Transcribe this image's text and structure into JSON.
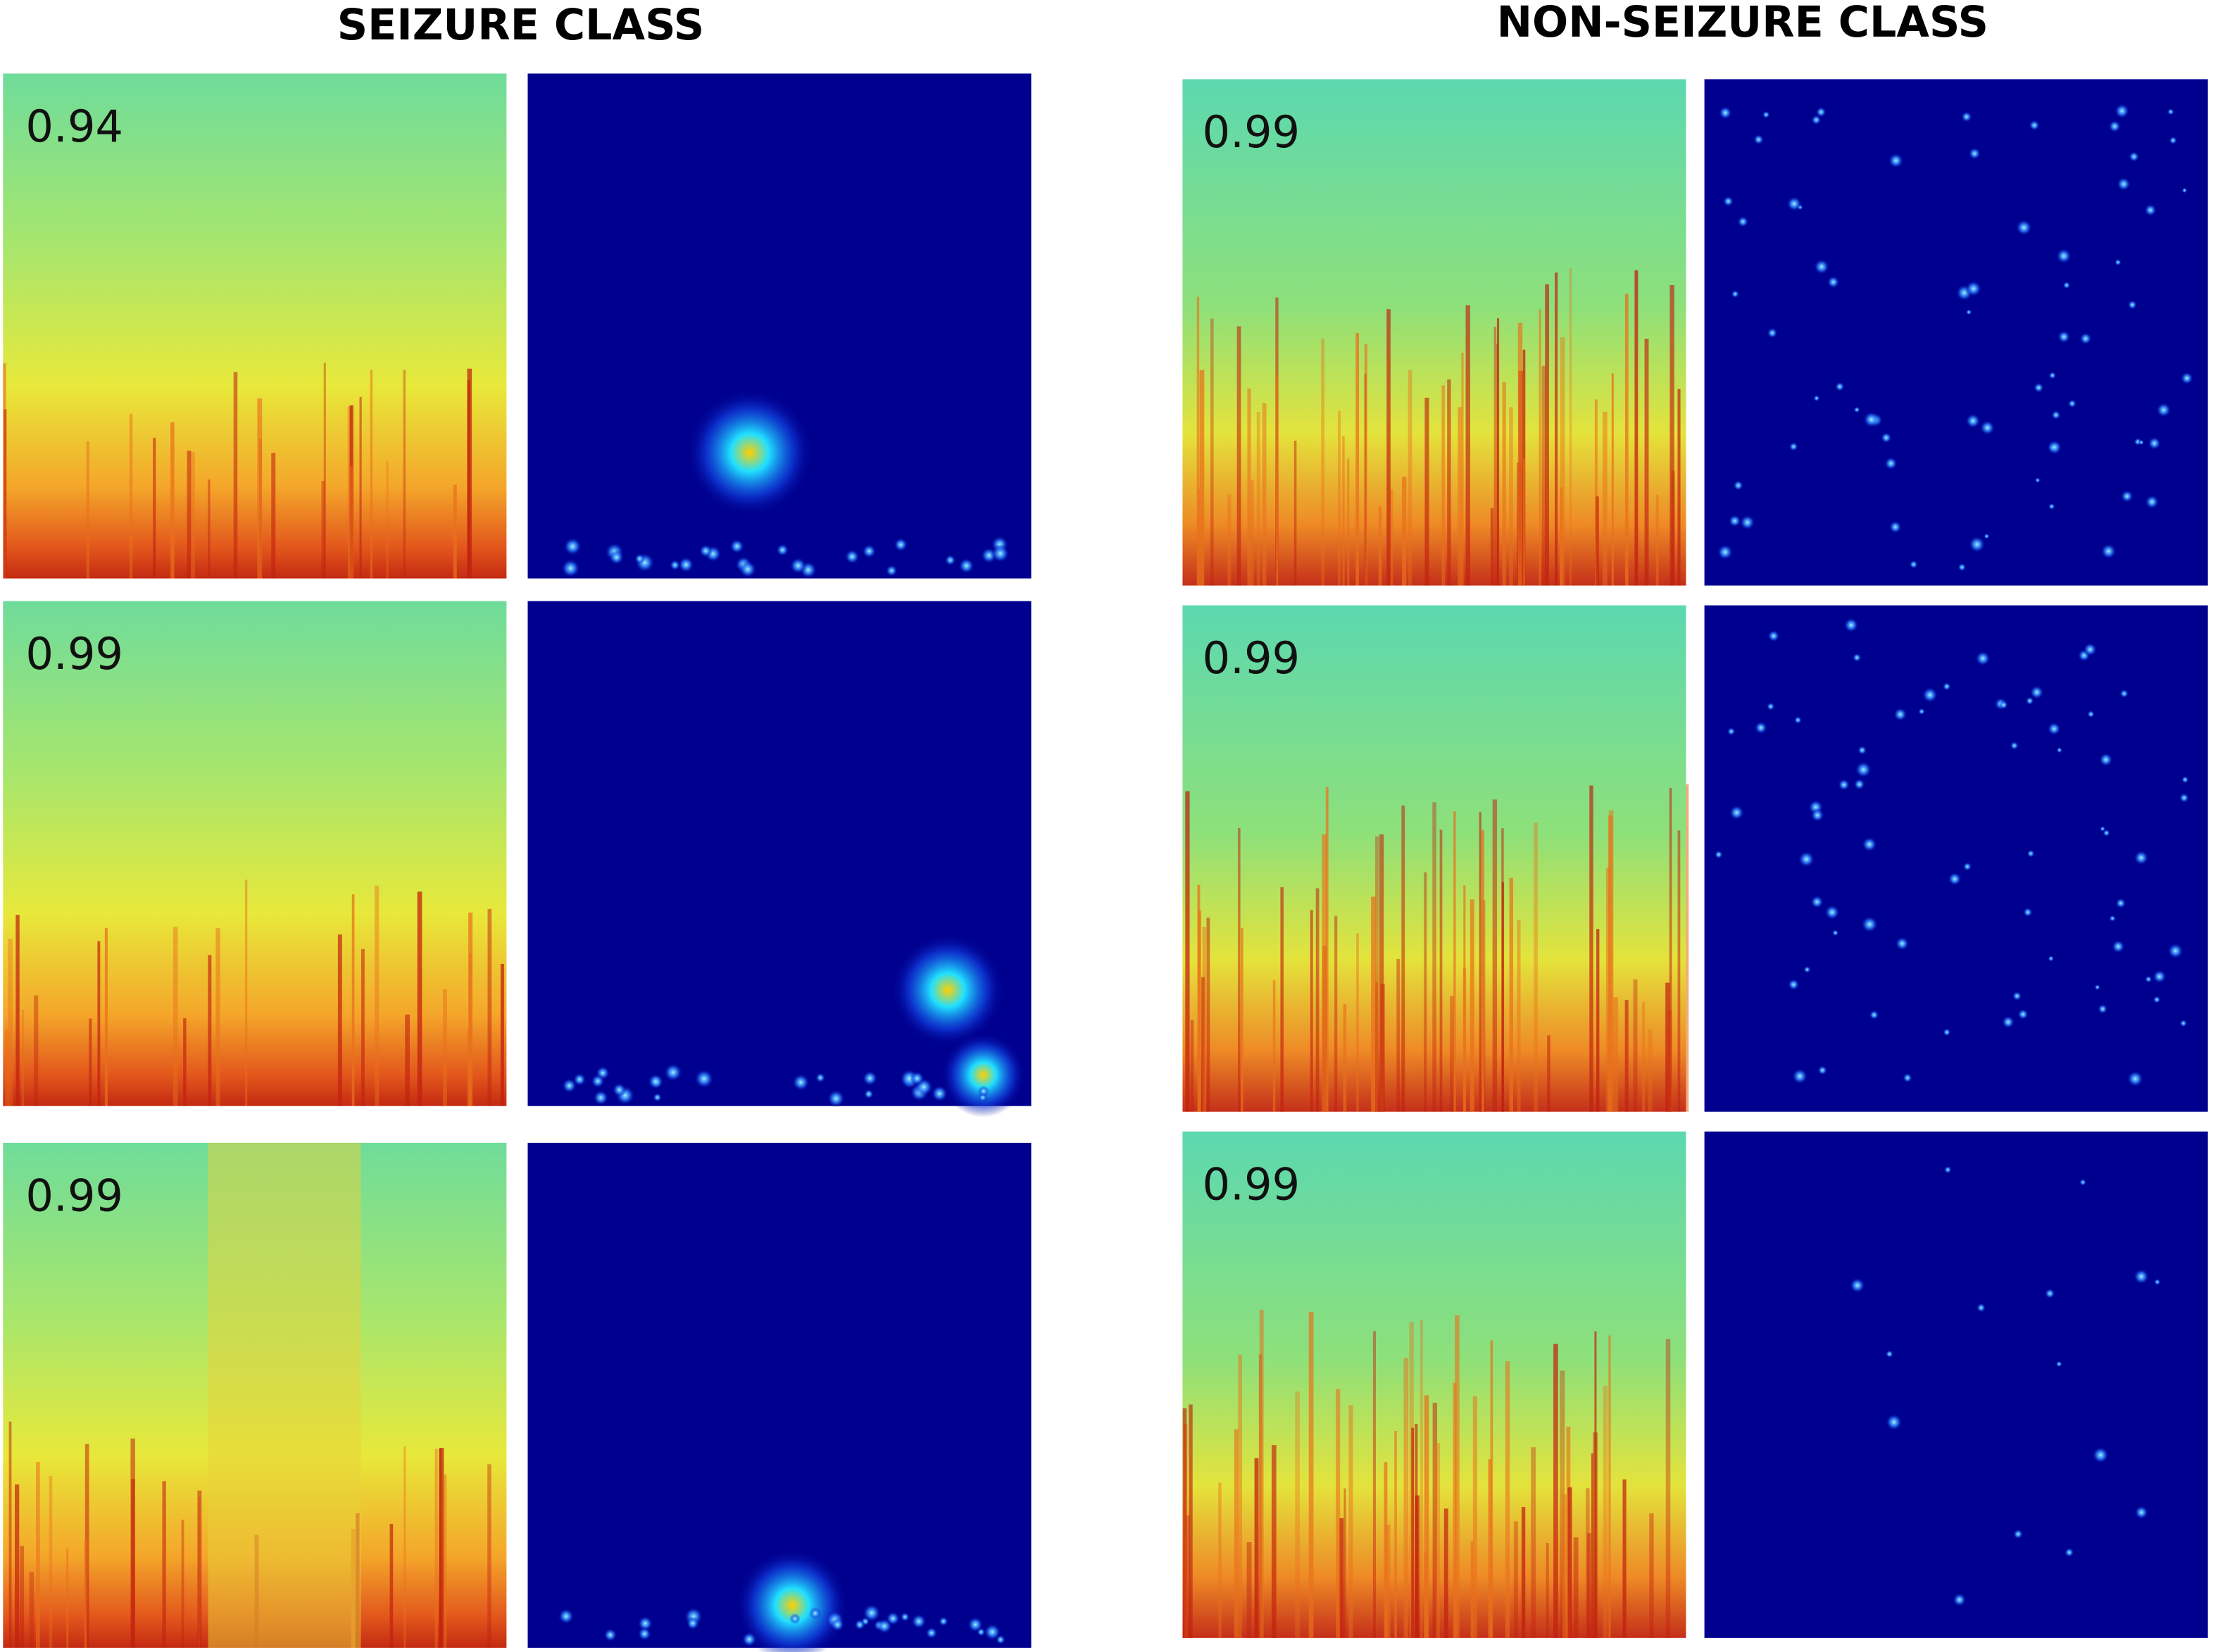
{
  "columns": [
    {
      "title": "SEIZURE CLASS",
      "scores": [
        0.94,
        0.99,
        0.99
      ]
    },
    {
      "title": "NON-SEIZURE CLASS",
      "scores": [
        0.99,
        0.99,
        0.99
      ]
    }
  ]
}
